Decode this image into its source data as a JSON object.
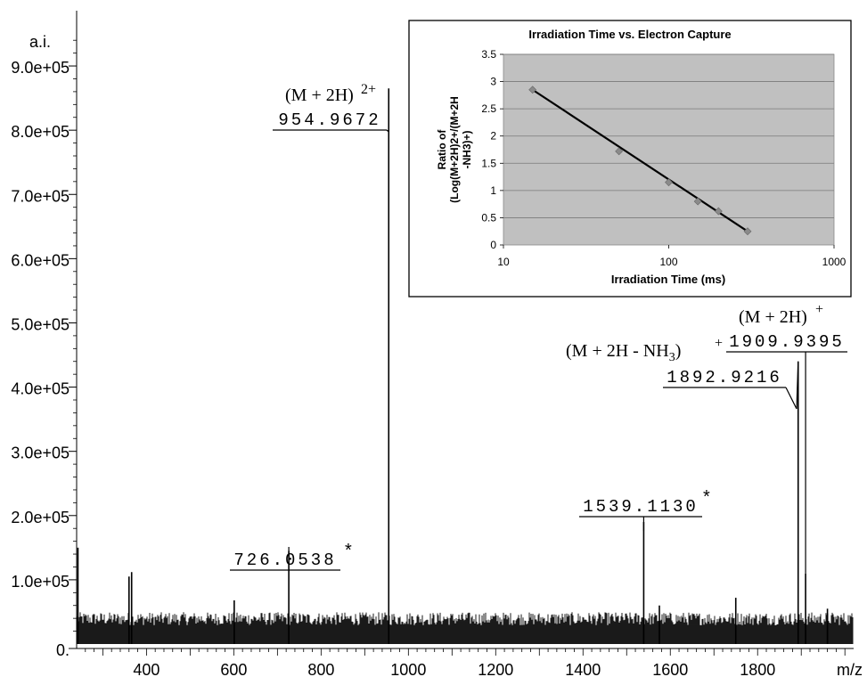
{
  "chart_data": [
    {
      "type": "line",
      "subtype": "mass-spectrum",
      "title": "",
      "ylabel": "a.i.",
      "xlabel": "m/z",
      "xlim": [
        240,
        2020
      ],
      "ylim": [
        0,
        1000000
      ],
      "x_ticks": [
        400,
        600,
        800,
        1000,
        1200,
        1400,
        1600,
        1800
      ],
      "x_tick_labels": [
        "400",
        "600",
        "800",
        "1000",
        "1200",
        "1400",
        "1600",
        "1800"
      ],
      "y_ticks": [
        0,
        100000,
        200000,
        300000,
        400000,
        500000,
        600000,
        700000,
        800000,
        900000
      ],
      "y_tick_labels": [
        "0.",
        "1.0e+05",
        "2.0e+05",
        "3.0e+05",
        "4.0e+05",
        "5.0e+05",
        "6.0e+05",
        "7.0e+05",
        "8.0e+05",
        "9.0e+05"
      ],
      "noise_level": 45000,
      "peaks": [
        {
          "x": 243,
          "y": 150000
        },
        {
          "x": 360,
          "y": 105000
        },
        {
          "x": 366,
          "y": 112000
        },
        {
          "x": 601,
          "y": 68000
        },
        {
          "x": 726.0538,
          "y": 145000
        },
        {
          "x": 954.9672,
          "y": 865000
        },
        {
          "x": 1539.113,
          "y": 190000
        },
        {
          "x": 1575,
          "y": 60000
        },
        {
          "x": 1750,
          "y": 72000
        },
        {
          "x": 1892.9216,
          "y": 440000
        },
        {
          "x": 1909.9395,
          "y": 110000
        },
        {
          "x": 1960,
          "y": 55000
        }
      ],
      "annotations": [
        {
          "peak_x": 726.0538,
          "mass_label": "726.0538",
          "marker": "*"
        },
        {
          "peak_x": 954.9672,
          "mass_label": "954.9672",
          "ion": "(M + 2H)",
          "charge": "2+"
        },
        {
          "peak_x": 1539.113,
          "mass_label": "1539.1130",
          "marker": "*"
        },
        {
          "peak_x": 1892.9216,
          "mass_label": "1892.9216",
          "ion": "(M + 2H - NH",
          "ion_sub": "3",
          "ion_close": ")",
          "charge": "+"
        },
        {
          "peak_x": 1909.9395,
          "mass_label": "1909.9395",
          "ion": "(M + 2H)",
          "charge": "+"
        }
      ]
    },
    {
      "type": "scatter",
      "title": "Irradiation Time vs. Electron Capture",
      "xlabel": "Irradiation Time (ms)",
      "ylabel_lines": [
        "Ratio of",
        "(Log(M+2H)2+/(M+2H",
        "-NH3)+)"
      ],
      "x_scale": "log",
      "xlim": [
        10,
        1000
      ],
      "ylim": [
        0,
        3.5
      ],
      "x_tick_labels": [
        "10",
        "100",
        "1000"
      ],
      "x_ticks": [
        10,
        100,
        1000
      ],
      "y_ticks": [
        0,
        0.5,
        1,
        1.5,
        2,
        2.5,
        3,
        3.5
      ],
      "y_tick_labels": [
        "0",
        "0.5",
        "1",
        "1.5",
        "2",
        "2.5",
        "3",
        "3.5"
      ],
      "grid": true,
      "points": [
        {
          "x": 15,
          "y": 2.85
        },
        {
          "x": 50,
          "y": 1.72
        },
        {
          "x": 100,
          "y": 1.15
        },
        {
          "x": 150,
          "y": 0.8
        },
        {
          "x": 200,
          "y": 0.62
        },
        {
          "x": 300,
          "y": 0.25
        }
      ],
      "trendline": [
        [
          15,
          2.85
        ],
        [
          300,
          0.25
        ]
      ],
      "colors": {
        "plot_bg": "#c0c0c0",
        "marker": "#8a8a8a",
        "trend": "#000000"
      }
    }
  ]
}
